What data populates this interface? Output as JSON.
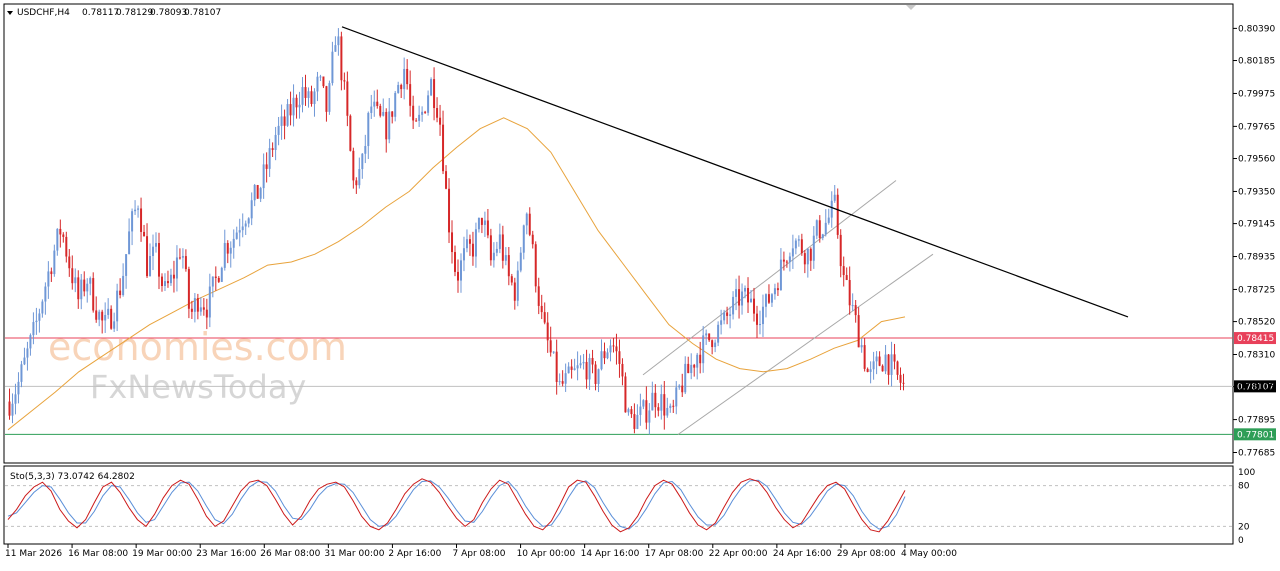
{
  "header": {
    "symbol": "USDCHF,H4",
    "open": "0.78117",
    "high": "0.78129",
    "low": "0.78093",
    "close": "0.78107"
  },
  "watermark": {
    "line1": "economies.com",
    "line2": "FxNewsToday"
  },
  "colors": {
    "bull": "#6f97d6",
    "bear": "#d62728",
    "ma": "#e8a33c",
    "resistance": "#e8405a",
    "support": "#2e9e57",
    "current": "#000000",
    "trendline": "#000000",
    "channel": "#a8a8a8",
    "stoch_main": "#cc1a1a",
    "stoch_signal": "#5b8fd8"
  },
  "chart_data": [
    {
      "type": "candlestick",
      "x": [
        "11 Mar 2026",
        "16 Mar 08:00",
        "19 Mar 00:00",
        "23 Mar 16:00",
        "26 Mar 08:00",
        "31 Mar 00:00",
        "2 Apr 16:00",
        "7 Apr 08:00",
        "10 Apr 00:00",
        "14 Apr 16:00",
        "17 Apr 08:00",
        "22 Apr 00:00",
        "24 Apr 16:00",
        "29 Apr 08:00",
        "4 May 00:00"
      ],
      "y_ticks": [
        "0.80390",
        "0.80185",
        "0.79975",
        "0.79765",
        "0.79560",
        "0.79350",
        "0.79145",
        "0.78935",
        "0.78725",
        "0.78520",
        "0.78310",
        "0.78105",
        "0.77895",
        "0.77685"
      ],
      "ylim": [
        0.7765,
        0.8052
      ],
      "levels": {
        "resistance": 0.78415,
        "current": 0.78107,
        "support": 0.77801
      },
      "level_labels": {
        "resistance": "0.78415",
        "current": "0.78107",
        "support": "0.77801"
      },
      "anchors": [
        0.7801,
        0.7812,
        0.783,
        0.7848,
        0.7872,
        0.7893,
        0.7912,
        0.7888,
        0.7866,
        0.788,
        0.7862,
        0.7848,
        0.7858,
        0.7876,
        0.791,
        0.793,
        0.7888,
        0.7895,
        0.787,
        0.788,
        0.7902,
        0.7855,
        0.7868,
        0.7862,
        0.7878,
        0.79,
        0.7905,
        0.7918,
        0.7925,
        0.7935,
        0.7952,
        0.7972,
        0.7978,
        0.799,
        0.8,
        0.799,
        0.8005,
        0.7985,
        0.804,
        0.7995,
        0.794,
        0.795,
        0.799,
        0.798,
        0.7975,
        0.8,
        0.8015,
        0.797,
        0.7985,
        0.8005,
        0.7985,
        0.792,
        0.788,
        0.7895,
        0.79,
        0.792,
        0.789,
        0.7905,
        0.788,
        0.787,
        0.793,
        0.789,
        0.785,
        0.783,
        0.781,
        0.7815,
        0.782,
        0.7825,
        0.7815,
        0.783,
        0.784,
        0.7825,
        0.779,
        0.779,
        0.7795,
        0.7805,
        0.78,
        0.779,
        0.781,
        0.782,
        0.7832,
        0.7838,
        0.7845,
        0.785,
        0.786,
        0.7868,
        0.7865,
        0.7858,
        0.7862,
        0.7875,
        0.789,
        0.7905,
        0.79,
        0.7895,
        0.791,
        0.7915,
        0.7925,
        0.788,
        0.786,
        0.784,
        0.7815,
        0.7825,
        0.783,
        0.7818,
        0.7811
      ],
      "ma_line": [
        0.7783,
        0.7795,
        0.7807,
        0.782,
        0.783,
        0.784,
        0.785,
        0.7858,
        0.7866,
        0.7873,
        0.788,
        0.7888,
        0.789,
        0.7895,
        0.7903,
        0.7913,
        0.7925,
        0.7935,
        0.795,
        0.7963,
        0.7975,
        0.7982,
        0.7975,
        0.796,
        0.7935,
        0.791,
        0.789,
        0.787,
        0.785,
        0.7838,
        0.7828,
        0.7822,
        0.782,
        0.7822,
        0.7828,
        0.7835,
        0.784,
        0.7852,
        0.7855
      ],
      "trendline": {
        "from": [
          "31 Mar 00:00",
          0.804
        ],
        "to": [
          "4 May 00:00",
          0.7855
        ]
      }
    },
    {
      "type": "line",
      "title": "Sto(5,3,3) 73.0742 64.2802",
      "ylim": [
        0,
        100
      ],
      "y_ticks": [
        "100",
        "80",
        "20",
        "0"
      ],
      "levels": [
        80,
        20
      ],
      "series": [
        {
          "name": "main",
          "values": [
            30,
            45,
            65,
            78,
            85,
            72,
            45,
            28,
            18,
            30,
            55,
            78,
            85,
            70,
            48,
            30,
            20,
            38,
            62,
            80,
            88,
            82,
            60,
            35,
            20,
            28,
            50,
            72,
            85,
            88,
            80,
            60,
            38,
            22,
            35,
            58,
            75,
            82,
            85,
            78,
            58,
            35,
            20,
            15,
            25,
            45,
            68,
            82,
            90,
            85,
            70,
            50,
            32,
            20,
            30,
            55,
            75,
            88,
            82,
            60,
            38,
            20,
            15,
            28,
            52,
            78,
            88,
            85,
            65,
            42,
            22,
            12,
            18,
            35,
            60,
            80,
            88,
            82,
            62,
            40,
            22,
            15,
            25,
            48,
            70,
            85,
            90,
            86,
            70,
            48,
            30,
            18,
            25,
            45,
            65,
            80,
            85,
            75,
            52,
            30,
            15,
            12,
            28,
            50,
            73
          ]
        },
        {
          "name": "signal",
          "values": [
            35,
            40,
            55,
            70,
            80,
            78,
            60,
            40,
            25,
            25,
            42,
            65,
            80,
            78,
            60,
            40,
            26,
            30,
            50,
            70,
            84,
            85,
            72,
            50,
            30,
            24,
            38,
            60,
            78,
            86,
            85,
            72,
            50,
            32,
            30,
            45,
            65,
            78,
            83,
            82,
            70,
            50,
            30,
            20,
            22,
            35,
            55,
            74,
            86,
            87,
            78,
            62,
            44,
            28,
            26,
            42,
            63,
            80,
            86,
            72,
            50,
            32,
            20,
            22,
            40,
            63,
            82,
            87,
            77,
            55,
            35,
            20,
            16,
            27,
            46,
            68,
            84,
            86,
            74,
            53,
            34,
            22,
            22,
            36,
            58,
            76,
            87,
            88,
            79,
            60,
            40,
            26,
            23,
            35,
            53,
            72,
            82,
            80,
            65,
            42,
            25,
            16,
            20,
            37,
            64
          ]
        }
      ]
    }
  ]
}
